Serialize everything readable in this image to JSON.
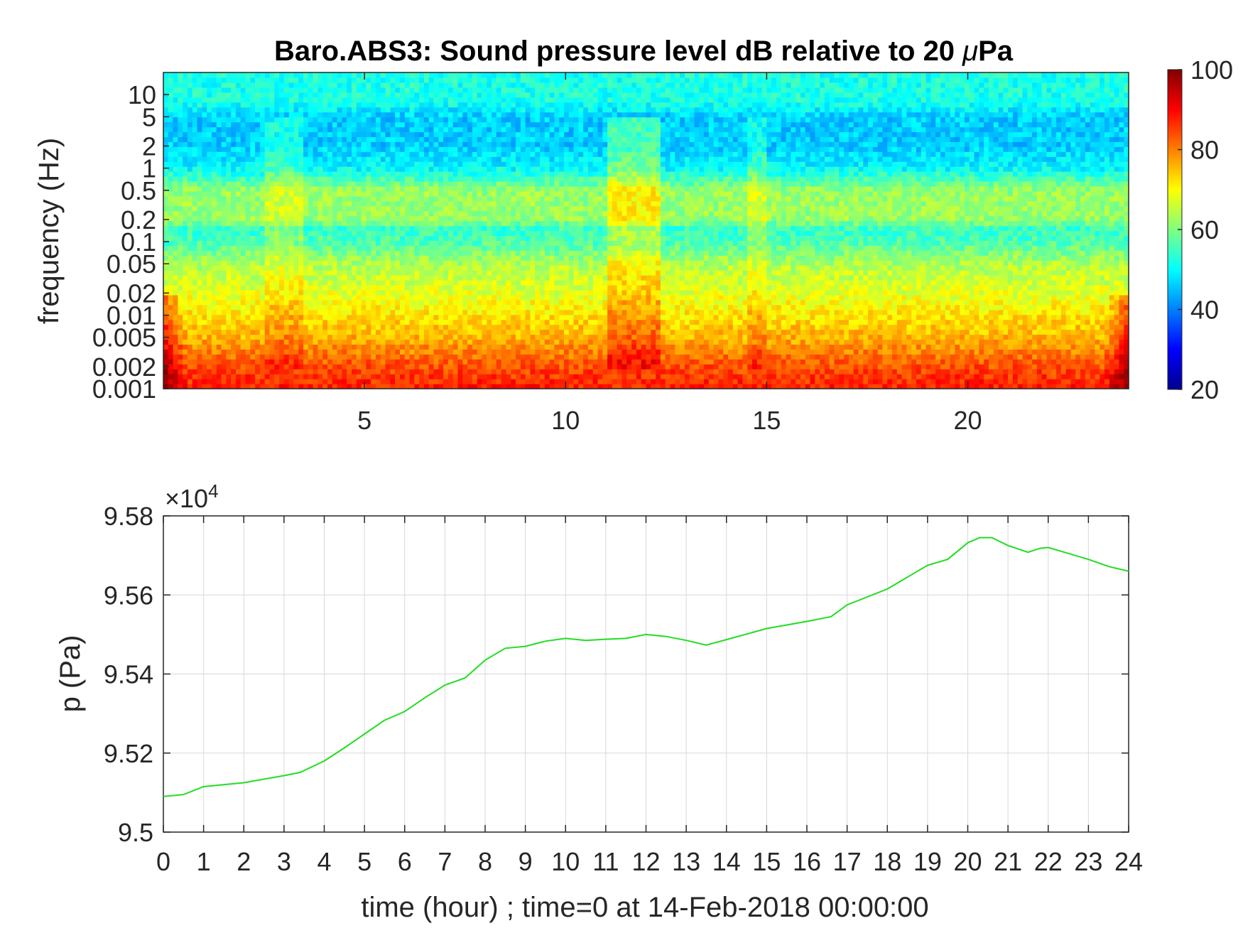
{
  "chart_data": [
    {
      "type": "heatmap",
      "title_prefix": "Baro.ABS3: Sound pressure level dB relative to 20 ",
      "title_mu": "μ",
      "title_suffix": "Pa",
      "ylabel": "frequency (Hz)",
      "xlabel": "",
      "xlim": [
        0,
        24
      ],
      "x_ticks": [
        5,
        10,
        15,
        20
      ],
      "x_tick_labels": [
        "5",
        "10",
        "15",
        "20"
      ],
      "y_scale": "log",
      "ylim": [
        0.001,
        20
      ],
      "y_ticks": [
        0.001,
        0.002,
        0.005,
        0.01,
        0.02,
        0.05,
        0.1,
        0.2,
        0.5,
        1,
        2,
        5,
        10
      ],
      "y_tick_labels": [
        "0.001",
        "0.002",
        "0.005",
        "0.01",
        "0.02",
        "0.05",
        "0.1",
        "0.2",
        "0.5",
        "1",
        "2",
        "5",
        "10"
      ],
      "colorbar": {
        "range": [
          20,
          100
        ],
        "ticks": [
          20,
          40,
          60,
          80,
          100
        ],
        "tick_labels": [
          "20",
          "40",
          "60",
          "80",
          "100"
        ],
        "colormap": "jet"
      },
      "level_profile_by_frequency": {
        "frequency_hz": [
          0.001,
          0.002,
          0.005,
          0.01,
          0.02,
          0.05,
          0.1,
          0.15,
          0.2,
          0.5,
          1,
          2,
          5,
          8,
          20
        ],
        "level_db": [
          88,
          84,
          76,
          72,
          68,
          64,
          56,
          54,
          62,
          62,
          50,
          46,
          46,
          52,
          52
        ]
      },
      "broadband_events_hours": [
        [
          11,
          12.3
        ],
        [
          2.5,
          3.5
        ],
        [
          14.5,
          15
        ]
      ]
    },
    {
      "type": "line",
      "ylabel": "p (Pa)",
      "xlabel": "time (hour) ; time=0 at 14-Feb-2018 00:00:00",
      "xlim": [
        0,
        24
      ],
      "ylim": [
        9.5,
        9.58
      ],
      "y_exponent_label": "×10",
      "y_exponent": "4",
      "x_ticks": [
        0,
        1,
        2,
        3,
        4,
        5,
        6,
        7,
        8,
        9,
        10,
        11,
        12,
        13,
        14,
        15,
        16,
        17,
        18,
        19,
        20,
        21,
        22,
        23,
        24
      ],
      "x_tick_labels": [
        "0",
        "1",
        "2",
        "3",
        "4",
        "5",
        "6",
        "7",
        "8",
        "9",
        "10",
        "11",
        "12",
        "13",
        "14",
        "15",
        "16",
        "17",
        "18",
        "19",
        "20",
        "21",
        "22",
        "23",
        "24"
      ],
      "y_ticks": [
        9.5,
        9.52,
        9.54,
        9.56,
        9.58
      ],
      "y_tick_labels": [
        "9.5",
        "9.52",
        "9.54",
        "9.56",
        "9.58"
      ],
      "grid": true,
      "color": "#22dd22",
      "x": [
        0,
        0.5,
        1,
        2,
        3,
        3.4,
        4,
        4.5,
        5,
        5.5,
        6,
        6.5,
        7,
        7.5,
        8,
        8.5,
        9,
        9.5,
        10,
        10.5,
        11,
        11.5,
        12,
        12.5,
        13,
        13.5,
        14,
        15,
        16,
        16.6,
        17,
        18,
        18.5,
        19,
        19.5,
        20,
        20.3,
        20.6,
        21,
        21.5,
        21.8,
        22,
        22.5,
        23,
        23.5,
        24
      ],
      "y": [
        9.509,
        9.5095,
        9.5115,
        9.5125,
        9.5143,
        9.5151,
        9.518,
        9.5213,
        9.5248,
        9.5283,
        9.5305,
        9.534,
        9.5372,
        9.539,
        9.5435,
        9.5465,
        9.547,
        9.5483,
        9.549,
        9.5485,
        9.5488,
        9.549,
        9.55,
        9.5495,
        9.5485,
        9.5473,
        9.5487,
        9.5515,
        9.5533,
        9.5545,
        9.5575,
        9.5615,
        9.5645,
        9.5675,
        9.569,
        9.5732,
        9.5745,
        9.5745,
        9.5725,
        9.5708,
        9.5718,
        9.572,
        9.5705,
        9.569,
        9.5672,
        9.566
      ]
    }
  ]
}
